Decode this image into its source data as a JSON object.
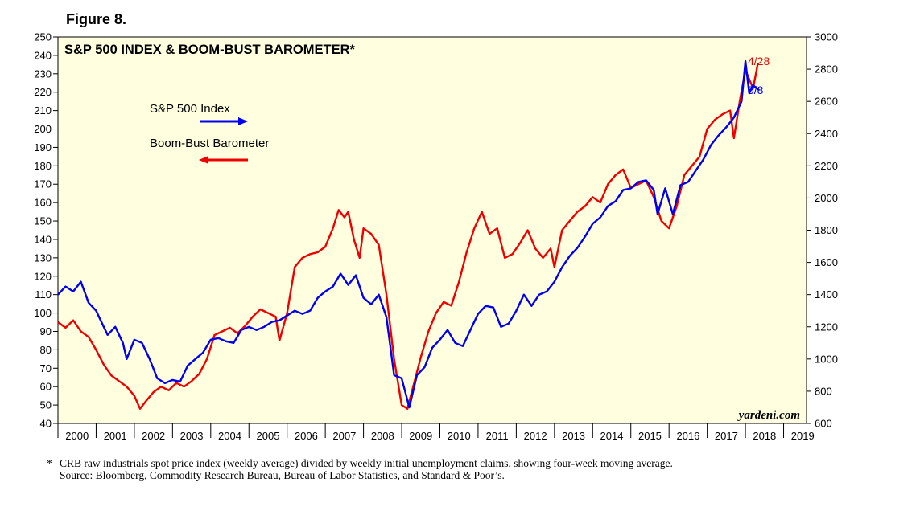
{
  "figure_label": "Figure 8.",
  "chart_data": {
    "type": "line",
    "title": "S&P 500 INDEX & BOOM-BUST BAROMETER*",
    "x_ticks": [
      "2000",
      "2001",
      "2002",
      "2003",
      "2004",
      "2005",
      "2006",
      "2007",
      "2008",
      "2009",
      "2010",
      "2011",
      "2012",
      "2013",
      "2014",
      "2015",
      "2016",
      "2017",
      "2018",
      "2019"
    ],
    "xlim": [
      2000,
      2019.6
    ],
    "left_axis": {
      "ylim": [
        40,
        250
      ],
      "ticks": [
        40,
        50,
        60,
        70,
        80,
        90,
        100,
        110,
        120,
        130,
        140,
        150,
        160,
        170,
        180,
        190,
        200,
        210,
        220,
        230,
        240,
        250
      ]
    },
    "right_axis": {
      "ylim": [
        600,
        3000
      ],
      "ticks": [
        600,
        800,
        1000,
        1200,
        1400,
        1600,
        1800,
        2000,
        2200,
        2400,
        2600,
        2800,
        3000
      ]
    },
    "legend": [
      {
        "label": "S&P 500 Index",
        "arrow": "right",
        "color": "#0000ee"
      },
      {
        "label": "Boom-Bust Barometer",
        "arrow": "left",
        "color": "#ee0000"
      }
    ],
    "series": [
      {
        "name": "Boom-Bust Barometer",
        "axis": "left",
        "color": "#ee0000",
        "end_label": "4/28",
        "points": [
          [
            2000.0,
            95
          ],
          [
            2000.2,
            92
          ],
          [
            2000.4,
            96
          ],
          [
            2000.6,
            90
          ],
          [
            2000.8,
            87
          ],
          [
            2001.0,
            80
          ],
          [
            2001.2,
            72
          ],
          [
            2001.4,
            66
          ],
          [
            2001.6,
            63
          ],
          [
            2001.8,
            60
          ],
          [
            2002.0,
            55
          ],
          [
            2002.15,
            48
          ],
          [
            2002.3,
            52
          ],
          [
            2002.5,
            57
          ],
          [
            2002.7,
            60
          ],
          [
            2002.9,
            58
          ],
          [
            2003.1,
            62
          ],
          [
            2003.3,
            60
          ],
          [
            2003.5,
            63
          ],
          [
            2003.7,
            67
          ],
          [
            2003.9,
            75
          ],
          [
            2004.1,
            88
          ],
          [
            2004.3,
            90
          ],
          [
            2004.5,
            92
          ],
          [
            2004.7,
            89
          ],
          [
            2004.9,
            93
          ],
          [
            2005.1,
            98
          ],
          [
            2005.3,
            102
          ],
          [
            2005.5,
            100
          ],
          [
            2005.7,
            98
          ],
          [
            2005.8,
            85
          ],
          [
            2006.0,
            100
          ],
          [
            2006.2,
            125
          ],
          [
            2006.4,
            130
          ],
          [
            2006.6,
            132
          ],
          [
            2006.8,
            133
          ],
          [
            2007.0,
            136
          ],
          [
            2007.2,
            146
          ],
          [
            2007.35,
            156
          ],
          [
            2007.5,
            152
          ],
          [
            2007.6,
            155
          ],
          [
            2007.75,
            140
          ],
          [
            2007.9,
            130
          ],
          [
            2008.0,
            146
          ],
          [
            2008.2,
            143
          ],
          [
            2008.4,
            137
          ],
          [
            2008.6,
            110
          ],
          [
            2008.8,
            75
          ],
          [
            2009.0,
            50
          ],
          [
            2009.15,
            48
          ],
          [
            2009.3,
            60
          ],
          [
            2009.5,
            76
          ],
          [
            2009.7,
            90
          ],
          [
            2009.9,
            100
          ],
          [
            2010.1,
            106
          ],
          [
            2010.3,
            104
          ],
          [
            2010.5,
            117
          ],
          [
            2010.7,
            133
          ],
          [
            2010.9,
            146
          ],
          [
            2011.1,
            155
          ],
          [
            2011.3,
            143
          ],
          [
            2011.5,
            146
          ],
          [
            2011.7,
            130
          ],
          [
            2011.9,
            132
          ],
          [
            2012.1,
            138
          ],
          [
            2012.3,
            145
          ],
          [
            2012.5,
            135
          ],
          [
            2012.7,
            130
          ],
          [
            2012.9,
            135
          ],
          [
            2013.0,
            125
          ],
          [
            2013.2,
            145
          ],
          [
            2013.4,
            150
          ],
          [
            2013.6,
            155
          ],
          [
            2013.8,
            158
          ],
          [
            2014.0,
            163
          ],
          [
            2014.2,
            160
          ],
          [
            2014.4,
            170
          ],
          [
            2014.6,
            175
          ],
          [
            2014.8,
            178
          ],
          [
            2015.0,
            168
          ],
          [
            2015.2,
            170
          ],
          [
            2015.4,
            172
          ],
          [
            2015.6,
            163
          ],
          [
            2015.8,
            150
          ],
          [
            2016.0,
            146
          ],
          [
            2016.2,
            158
          ],
          [
            2016.4,
            175
          ],
          [
            2016.6,
            180
          ],
          [
            2016.8,
            185
          ],
          [
            2017.0,
            200
          ],
          [
            2017.2,
            205
          ],
          [
            2017.4,
            208
          ],
          [
            2017.6,
            210
          ],
          [
            2017.7,
            195
          ],
          [
            2017.85,
            215
          ],
          [
            2018.0,
            232
          ],
          [
            2018.2,
            222
          ],
          [
            2018.33,
            236
          ]
        ]
      },
      {
        "name": "S&P 500 Index",
        "axis": "right",
        "color": "#0000ee",
        "end_label": "5/8",
        "points": [
          [
            2000.0,
            1400
          ],
          [
            2000.2,
            1450
          ],
          [
            2000.4,
            1420
          ],
          [
            2000.6,
            1480
          ],
          [
            2000.8,
            1350
          ],
          [
            2001.0,
            1300
          ],
          [
            2001.2,
            1200
          ],
          [
            2001.3,
            1150
          ],
          [
            2001.5,
            1200
          ],
          [
            2001.7,
            1100
          ],
          [
            2001.8,
            1000
          ],
          [
            2002.0,
            1120
          ],
          [
            2002.2,
            1100
          ],
          [
            2002.4,
            1000
          ],
          [
            2002.6,
            880
          ],
          [
            2002.8,
            850
          ],
          [
            2003.0,
            870
          ],
          [
            2003.2,
            860
          ],
          [
            2003.4,
            960
          ],
          [
            2003.6,
            1000
          ],
          [
            2003.8,
            1040
          ],
          [
            2004.0,
            1120
          ],
          [
            2004.2,
            1130
          ],
          [
            2004.4,
            1110
          ],
          [
            2004.6,
            1100
          ],
          [
            2004.8,
            1180
          ],
          [
            2005.0,
            1200
          ],
          [
            2005.2,
            1180
          ],
          [
            2005.4,
            1200
          ],
          [
            2005.6,
            1230
          ],
          [
            2005.8,
            1240
          ],
          [
            2006.0,
            1270
          ],
          [
            2006.2,
            1300
          ],
          [
            2006.4,
            1280
          ],
          [
            2006.6,
            1300
          ],
          [
            2006.8,
            1380
          ],
          [
            2007.0,
            1420
          ],
          [
            2007.2,
            1450
          ],
          [
            2007.4,
            1530
          ],
          [
            2007.6,
            1460
          ],
          [
            2007.8,
            1520
          ],
          [
            2008.0,
            1380
          ],
          [
            2008.2,
            1340
          ],
          [
            2008.4,
            1400
          ],
          [
            2008.6,
            1260
          ],
          [
            2008.8,
            900
          ],
          [
            2009.0,
            880
          ],
          [
            2009.2,
            700
          ],
          [
            2009.4,
            900
          ],
          [
            2009.6,
            950
          ],
          [
            2009.8,
            1070
          ],
          [
            2010.0,
            1120
          ],
          [
            2010.2,
            1180
          ],
          [
            2010.4,
            1100
          ],
          [
            2010.6,
            1080
          ],
          [
            2010.8,
            1180
          ],
          [
            2011.0,
            1280
          ],
          [
            2011.2,
            1330
          ],
          [
            2011.4,
            1320
          ],
          [
            2011.6,
            1200
          ],
          [
            2011.8,
            1220
          ],
          [
            2012.0,
            1300
          ],
          [
            2012.2,
            1400
          ],
          [
            2012.4,
            1330
          ],
          [
            2012.6,
            1400
          ],
          [
            2012.8,
            1420
          ],
          [
            2013.0,
            1480
          ],
          [
            2013.2,
            1570
          ],
          [
            2013.4,
            1640
          ],
          [
            2013.6,
            1690
          ],
          [
            2013.8,
            1760
          ],
          [
            2014.0,
            1840
          ],
          [
            2014.2,
            1880
          ],
          [
            2014.4,
            1950
          ],
          [
            2014.6,
            1980
          ],
          [
            2014.8,
            2050
          ],
          [
            2015.0,
            2060
          ],
          [
            2015.2,
            2100
          ],
          [
            2015.4,
            2110
          ],
          [
            2015.6,
            2050
          ],
          [
            2015.7,
            1900
          ],
          [
            2015.9,
            2060
          ],
          [
            2016.1,
            1900
          ],
          [
            2016.3,
            2080
          ],
          [
            2016.5,
            2100
          ],
          [
            2016.7,
            2170
          ],
          [
            2016.9,
            2240
          ],
          [
            2017.1,
            2330
          ],
          [
            2017.3,
            2390
          ],
          [
            2017.5,
            2440
          ],
          [
            2017.7,
            2500
          ],
          [
            2017.9,
            2600
          ],
          [
            2018.0,
            2850
          ],
          [
            2018.1,
            2650
          ],
          [
            2018.2,
            2700
          ],
          [
            2018.35,
            2670
          ]
        ]
      }
    ],
    "watermark": "yardeni.com"
  },
  "footnote": {
    "marker": "*",
    "line1": "CRB raw industrials spot price index (weekly average) divided by weekly initial unemployment claims, showing four-week moving average.",
    "line2": "Source: Bloomberg, Commodity Research Bureau, Bureau of Labor Statistics, and Standard & Poor’s."
  }
}
